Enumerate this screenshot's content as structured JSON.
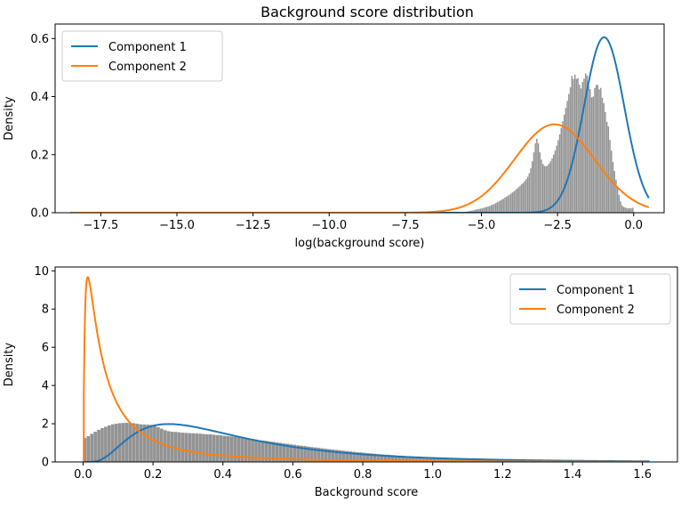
{
  "title": "Background score distribution",
  "colors": {
    "component1": "#1f77b4",
    "component2": "#ff7f0e",
    "histogram": "#808080"
  },
  "chart_data": [
    {
      "type": "histogram+line",
      "xlabel": "log(background score)",
      "ylabel": "Density",
      "xlim": [
        -19.0,
        1.0
      ],
      "ylim": [
        0.0,
        0.65
      ],
      "xticks": [
        -17.5,
        -15.0,
        -12.5,
        -10.0,
        -7.5,
        -5.0,
        -2.5,
        0.0
      ],
      "xtick_labels": [
        "−17.5",
        "−15.0",
        "−12.5",
        "−10.0",
        "−7.5",
        "−5.0",
        "−2.5",
        "0.0"
      ],
      "yticks": [
        0.0,
        0.2,
        0.4,
        0.6
      ],
      "ytick_labels": [
        "0.0",
        "0.2",
        "0.4",
        "0.6"
      ],
      "legend_position": "upper-left",
      "series": [
        {
          "name": "Component 1",
          "kind": "normal-pdf",
          "mean": -0.97,
          "std": 0.66,
          "x_range": [
            -18.5,
            0.5
          ]
        },
        {
          "name": "Component 2",
          "kind": "normal-pdf",
          "mean": -2.6,
          "std": 1.31,
          "x_range": [
            -18.5,
            0.5
          ]
        }
      ],
      "histogram": {
        "x_start": -5.8,
        "bin_width": 0.05,
        "density": [
          0.001,
          0.001,
          0.002,
          0.002,
          0.003,
          0.003,
          0.004,
          0.005,
          0.006,
          0.007,
          0.008,
          0.009,
          0.011,
          0.012,
          0.013,
          0.014,
          0.015,
          0.017,
          0.018,
          0.02,
          0.022,
          0.023,
          0.026,
          0.028,
          0.03,
          0.033,
          0.036,
          0.039,
          0.042,
          0.045,
          0.048,
          0.052,
          0.055,
          0.059,
          0.062,
          0.066,
          0.07,
          0.074,
          0.079,
          0.083,
          0.088,
          0.093,
          0.098,
          0.103,
          0.109,
          0.116,
          0.124,
          0.136,
          0.153,
          0.177,
          0.208,
          0.239,
          0.255,
          0.239,
          0.208,
          0.183,
          0.168,
          0.161,
          0.16,
          0.163,
          0.169,
          0.177,
          0.187,
          0.2,
          0.214,
          0.231,
          0.25,
          0.27,
          0.292,
          0.315,
          0.338,
          0.361,
          0.385,
          0.409,
          0.432,
          0.471,
          0.461,
          0.476,
          0.461,
          0.464,
          0.441,
          0.428,
          0.45,
          0.462,
          0.48,
          0.473,
          0.437,
          0.426,
          0.397,
          0.4,
          0.43,
          0.44,
          0.44,
          0.425,
          0.43,
          0.396,
          0.377,
          0.347,
          0.313,
          0.297,
          0.251,
          0.214,
          0.175,
          0.144,
          0.114,
          0.087,
          0.061,
          0.039,
          0.025,
          0.02,
          0.018,
          0.016,
          0.015,
          0.015,
          0.016,
          0.017
        ]
      }
    },
    {
      "type": "histogram+line",
      "xlabel": "Background score",
      "ylabel": "Density",
      "xlim": [
        -0.08,
        1.7
      ],
      "ylim": [
        0.0,
        10.2
      ],
      "xticks": [
        0.0,
        0.2,
        0.4,
        0.6,
        0.8,
        1.0,
        1.2,
        1.4,
        1.6
      ],
      "xtick_labels": [
        "0.0",
        "0.2",
        "0.4",
        "0.6",
        "0.8",
        "1.0",
        "1.2",
        "1.4",
        "1.6"
      ],
      "yticks": [
        0,
        2,
        4,
        6,
        8,
        10
      ],
      "ytick_labels": [
        "0",
        "2",
        "4",
        "6",
        "8",
        "10"
      ],
      "legend_position": "upper-right",
      "series": [
        {
          "name": "Component 1",
          "kind": "lognormal-pdf",
          "mu": -0.97,
          "sigma": 0.66,
          "x_range": [
            0.005,
            1.62
          ]
        },
        {
          "name": "Component 2",
          "kind": "lognormal-pdf",
          "mu": -2.6,
          "sigma": 1.31,
          "x_range": [
            0.002,
            1.62
          ]
        }
      ],
      "histogram": {
        "x_start": 0.0,
        "bin_width": 0.01,
        "density": [
          1.25,
          1.35,
          1.47,
          1.58,
          1.68,
          1.77,
          1.84,
          1.91,
          1.97,
          2.0,
          2.03,
          2.04,
          2.05,
          2.04,
          2.03,
          2.0,
          1.97,
          1.96,
          1.95,
          1.94,
          1.89,
          1.82,
          1.74,
          1.66,
          1.61,
          1.58,
          1.57,
          1.55,
          1.53,
          1.52,
          1.51,
          1.5,
          1.49,
          1.48,
          1.46,
          1.45,
          1.44,
          1.42,
          1.41,
          1.39,
          1.37,
          1.35,
          1.33,
          1.31,
          1.29,
          1.26,
          1.24,
          1.22,
          1.19,
          1.17,
          1.14,
          1.12,
          1.1,
          1.07,
          1.05,
          1.02,
          1.0,
          0.97,
          0.95,
          0.92,
          0.9,
          0.87,
          0.85,
          0.83,
          0.8,
          0.78,
          0.76,
          0.74,
          0.71,
          0.69,
          0.67,
          0.65,
          0.63,
          0.61,
          0.59,
          0.57,
          0.55,
          0.53,
          0.51,
          0.5,
          0.48,
          0.46,
          0.45,
          0.43,
          0.41,
          0.4,
          0.38,
          0.37,
          0.36,
          0.34,
          0.33,
          0.32,
          0.3,
          0.29,
          0.28,
          0.27,
          0.26,
          0.25,
          0.24,
          0.23,
          0.22,
          0.21,
          0.2,
          0.19,
          0.19,
          0.18,
          0.17,
          0.16,
          0.16,
          0.15,
          0.14,
          0.14,
          0.13,
          0.13,
          0.12,
          0.11,
          0.11,
          0.1,
          0.1,
          0.1,
          0.09,
          0.09,
          0.08,
          0.08,
          0.07,
          0.07,
          0.07,
          0.06,
          0.06,
          0.06,
          0.05,
          0.05,
          0.05,
          0.05,
          0.04,
          0.04,
          0.04,
          0.04,
          0.03,
          0.03,
          0.03,
          0.03,
          0.03,
          0.03,
          0.02,
          0.02,
          0.02,
          0.02,
          0.02,
          0.02,
          0.02,
          0.02,
          0.01,
          0.01,
          0.01,
          0.01,
          0.01,
          0.01,
          0.01,
          0.01,
          0.01,
          0.01,
          0.01,
          0.01
        ]
      }
    }
  ]
}
